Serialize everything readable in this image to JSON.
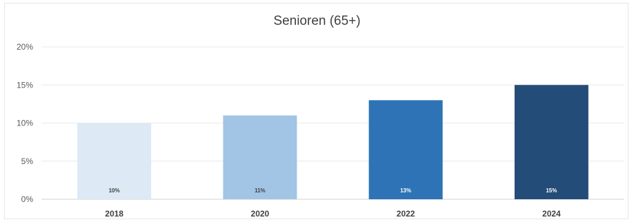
{
  "chart_data": {
    "type": "bar",
    "title": "Senioren (65+)",
    "xlabel": "",
    "ylabel": "",
    "categories": [
      "2018",
      "2020",
      "2022",
      "2024"
    ],
    "values": [
      10,
      11,
      13,
      15
    ],
    "data_labels": [
      "10%",
      "11%",
      "13%",
      "15%"
    ],
    "bar_colors": [
      "#dde9f5",
      "#a2c4e5",
      "#2e73b6",
      "#244c78"
    ],
    "label_colors": [
      "#404040",
      "#404040",
      "#ffffff",
      "#ffffff"
    ],
    "ylim": [
      0,
      20
    ],
    "yticks": [
      0,
      5,
      10,
      15,
      20
    ],
    "ytick_labels": [
      "0%",
      "5%",
      "10%",
      "15%",
      "20%"
    ],
    "grid": true,
    "legend": "none"
  }
}
